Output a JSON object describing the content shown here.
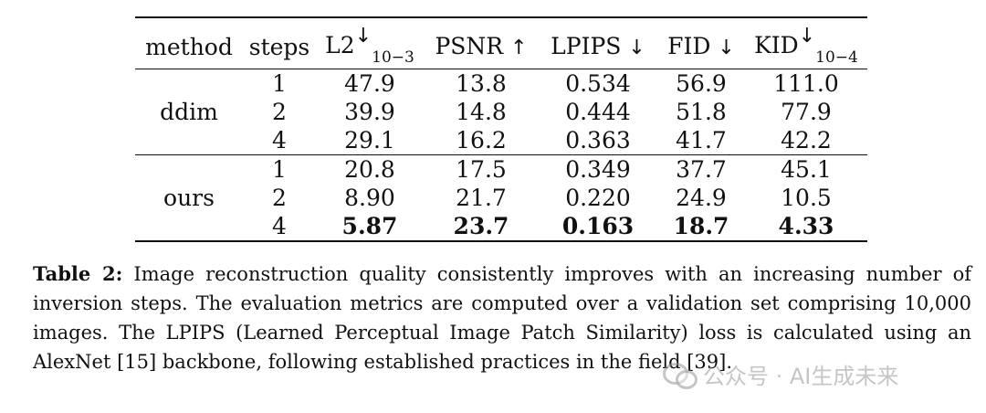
{
  "table": {
    "headers": {
      "method": "method",
      "steps": "steps",
      "l2": "L2",
      "l2_sup": "↓",
      "l2_sub": "10−3",
      "psnr": "PSNR",
      "psnr_arrow": "↑",
      "lpips": "LPIPS",
      "lpips_arrow": "↓",
      "fid": "FID",
      "fid_arrow": "↓",
      "kid": "KID",
      "kid_sup": "↓",
      "kid_sub": "10−4"
    },
    "groups": [
      {
        "method": "ddim",
        "rows": [
          {
            "steps": "1",
            "l2": "47.9",
            "psnr": "13.8",
            "lpips": "0.534",
            "fid": "56.9",
            "kid": "111.0"
          },
          {
            "steps": "2",
            "l2": "39.9",
            "psnr": "14.8",
            "lpips": "0.444",
            "fid": "51.8",
            "kid": "77.9"
          },
          {
            "steps": "4",
            "l2": "29.1",
            "psnr": "16.2",
            "lpips": "0.363",
            "fid": "41.7",
            "kid": "42.2"
          }
        ]
      },
      {
        "method": "ours",
        "rows": [
          {
            "steps": "1",
            "l2": "20.8",
            "psnr": "17.5",
            "lpips": "0.349",
            "fid": "37.7",
            "kid": "45.1"
          },
          {
            "steps": "2",
            "l2": "8.90",
            "psnr": "21.7",
            "lpips": "0.220",
            "fid": "24.9",
            "kid": "10.5"
          },
          {
            "steps": "4",
            "l2": "5.87",
            "psnr": "23.7",
            "lpips": "0.163",
            "fid": "18.7",
            "kid": "4.33"
          }
        ]
      }
    ]
  },
  "caption": {
    "label": "Table 2:",
    "text": "Image reconstruction quality consistently improves with an increasing number of inversion steps. The evaluation metrics are computed over a validation set comprising 10,000 images. The LPIPS (Learned Perceptual Image Patch Similarity) loss is calculated using an AlexNet [15] backbone, following established practices in the field [39]."
  },
  "watermark": {
    "icon": "wechat-icon",
    "text": "公众号 · AI生成未来"
  }
}
